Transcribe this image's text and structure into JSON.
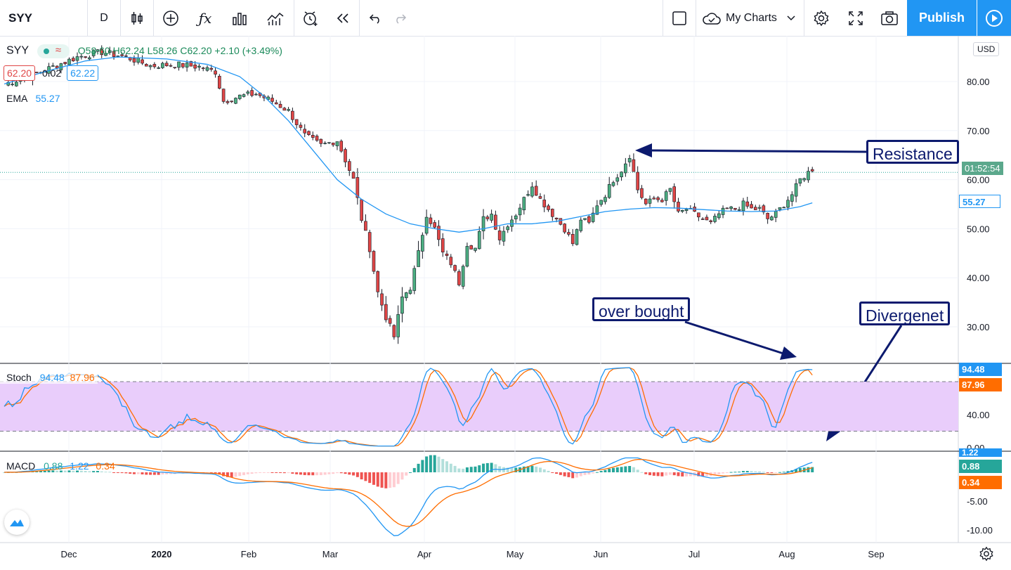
{
  "toolbar": {
    "symbol": "SYY",
    "interval": "D",
    "my_charts": "My Charts",
    "publish": "Publish"
  },
  "legend": {
    "symbol": "SYY",
    "ohlc": "O58.60 H62.24 L58.26 C62.20 +2.10 (+3.49%)",
    "bid": "62.20",
    "spread": "0.02",
    "ask": "62.22",
    "ema_label": "EMA",
    "ema_value": "55.27",
    "stoch_label": "Stoch",
    "stoch_k": "94.48",
    "stoch_d": "87.96",
    "macd_label": "MACD",
    "macd_hist": "0.88",
    "macd_line": "1.22",
    "macd_signal": "0.34"
  },
  "axis": {
    "currency": "USD",
    "countdown": "01:52:54",
    "ema_box": "55.27",
    "stoch_k_box": "94.48",
    "stoch_d_box": "87.96",
    "macd_top_box": "1.22",
    "macd_hist_box": "0.88",
    "macd_signal_box": "0.34"
  },
  "annotations": {
    "resistance": "Resistance",
    "overbought": "over bought",
    "divergence": "Divergenet"
  },
  "colors": {
    "up": "#4caf82",
    "down": "#e04646",
    "ema": "#2196f3",
    "stoch_k": "#2196f3",
    "stoch_d": "#ff6d00",
    "stoch_band": "#e9cdfb",
    "annotation": "#0c1a6e",
    "price_line": "#26a69a"
  },
  "chart_data": [
    {
      "type": "candlestick",
      "title": "SYY",
      "timeframe": "D",
      "y_ticks": [
        30,
        40,
        50,
        60,
        70,
        80
      ],
      "y_tick_labels": [
        "30.00",
        "40.00",
        "50.00",
        "60.00",
        "70.00",
        "80.00"
      ],
      "ylim": [
        23,
        90
      ],
      "x_ticks": [
        "Dec",
        "2020",
        "Feb",
        "Mar",
        "Apr",
        "May",
        "Jun",
        "Jul",
        "Aug",
        "Sep"
      ],
      "last_price": 62.2,
      "resistance_level": 65,
      "series": [
        {
          "name": "EMA",
          "points": [
            [
              0,
              79.5
            ],
            [
              10,
              82
            ],
            [
              20,
              84.2
            ],
            [
              28,
              85
            ],
            [
              40,
              84.6
            ],
            [
              50,
              83.5
            ],
            [
              58,
              81
            ],
            [
              64,
              77
            ],
            [
              70,
              72
            ],
            [
              76,
              66
            ],
            [
              82,
              60
            ],
            [
              88,
              56
            ],
            [
              94,
              53
            ],
            [
              100,
              51
            ],
            [
              106,
              50
            ],
            [
              112,
              49.3
            ],
            [
              118,
              50
            ],
            [
              124,
              51
            ],
            [
              130,
              51
            ],
            [
              136,
              51.5
            ],
            [
              142,
              52.5
            ],
            [
              148,
              53.5
            ],
            [
              154,
              54
            ],
            [
              160,
              54.3
            ],
            [
              166,
              54.2
            ],
            [
              172,
              53.9
            ],
            [
              178,
              53.6
            ],
            [
              184,
              53.5
            ],
            [
              190,
              53.6
            ],
            [
              196,
              54.5
            ],
            [
              199,
              55.27
            ]
          ]
        }
      ],
      "candles_description": "Daily OHLC candles, late Nov 2019 to early Aug 2020; drop from ~85 in Feb to ~27 in Mar, recovery to ~65 in early Jun, consolidation 50-58, breakout to 62.20 in Aug"
    },
    {
      "type": "line",
      "title": "Stoch",
      "y_ticks": [
        0,
        40
      ],
      "y_tick_labels": [
        "0.00",
        "40.00"
      ],
      "band": [
        20,
        80
      ],
      "series": [
        {
          "name": "%K",
          "last": 94.48
        },
        {
          "name": "%D",
          "last": 87.96
        }
      ]
    },
    {
      "type": "bar",
      "title": "MACD",
      "y_ticks": [
        -10,
        -5
      ],
      "y_tick_labels": [
        "-10.00",
        "-5.00"
      ],
      "series": [
        {
          "name": "Histogram",
          "last": 0.88
        },
        {
          "name": "MACD",
          "last": 1.22
        },
        {
          "name": "Signal",
          "last": 0.34
        }
      ]
    }
  ]
}
